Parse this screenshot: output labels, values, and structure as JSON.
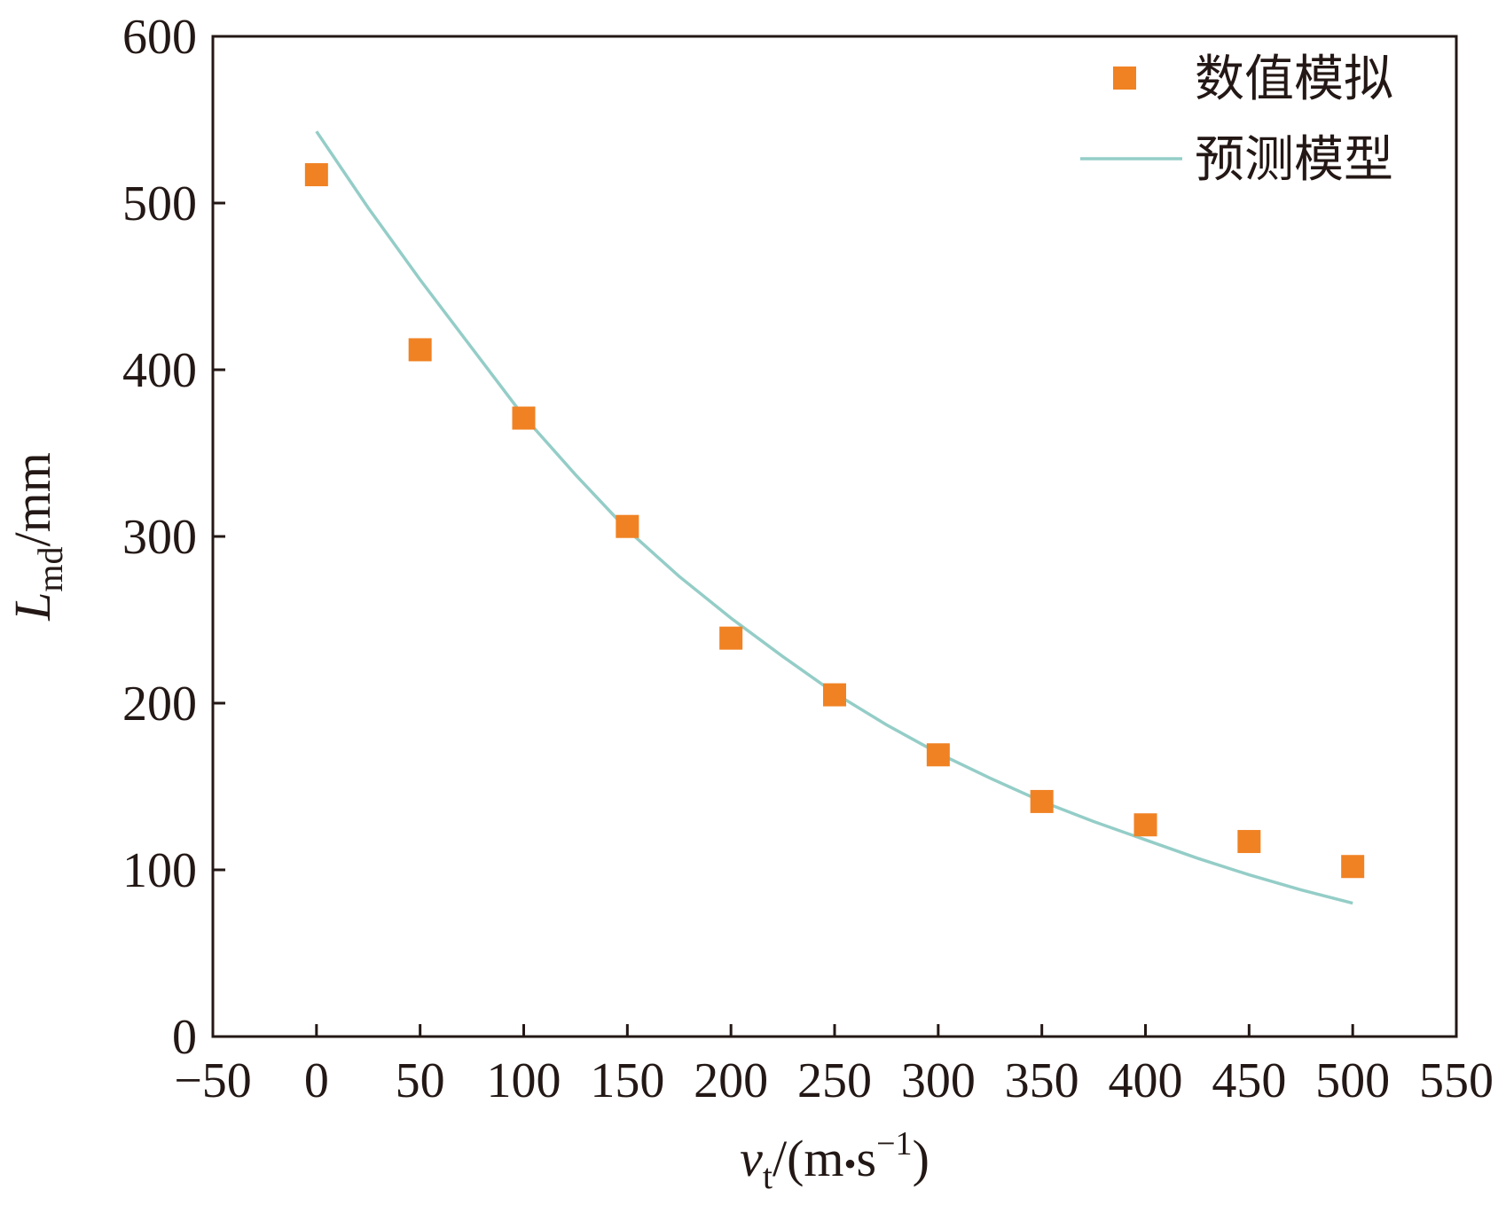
{
  "chart_data": {
    "type": "scatter",
    "x_range": [
      -50,
      550
    ],
    "y_range": [
      0,
      600
    ],
    "x_ticks": [
      -50,
      0,
      50,
      100,
      150,
      200,
      250,
      300,
      350,
      400,
      450,
      500,
      550
    ],
    "y_ticks": [
      0,
      100,
      200,
      300,
      400,
      500,
      600
    ],
    "xlabel": {
      "main": "v",
      "sub": "t",
      "unit_pre": "/(m",
      "dot": "•",
      "unit_s": "s",
      "sup": "−1",
      "unit_post": ")"
    },
    "ylabel": {
      "main": "L",
      "sub": "md",
      "unit": "/mm"
    },
    "grid": false,
    "legend_position": "top-right",
    "series": [
      {
        "name": "数值模拟",
        "kind": "scatter",
        "marker": "square",
        "color": "#f08223",
        "points": [
          [
            0,
            517
          ],
          [
            50,
            412
          ],
          [
            100,
            371
          ],
          [
            150,
            306
          ],
          [
            200,
            239
          ],
          [
            250,
            205
          ],
          [
            300,
            169
          ],
          [
            350,
            141
          ],
          [
            400,
            127
          ],
          [
            450,
            117
          ],
          [
            500,
            102
          ]
        ]
      },
      {
        "name": "预测模型",
        "kind": "line",
        "color": "#94cdc7",
        "points": [
          [
            0,
            543
          ],
          [
            25,
            497
          ],
          [
            50,
            454
          ],
          [
            75,
            413
          ],
          [
            100,
            372
          ],
          [
            125,
            337
          ],
          [
            150,
            304
          ],
          [
            175,
            276
          ],
          [
            200,
            251
          ],
          [
            225,
            228
          ],
          [
            250,
            206
          ],
          [
            275,
            187
          ],
          [
            300,
            170
          ],
          [
            325,
            155
          ],
          [
            350,
            141
          ],
          [
            375,
            129
          ],
          [
            400,
            118
          ],
          [
            425,
            107
          ],
          [
            450,
            97
          ],
          [
            475,
            88
          ],
          [
            500,
            80
          ]
        ]
      }
    ]
  }
}
